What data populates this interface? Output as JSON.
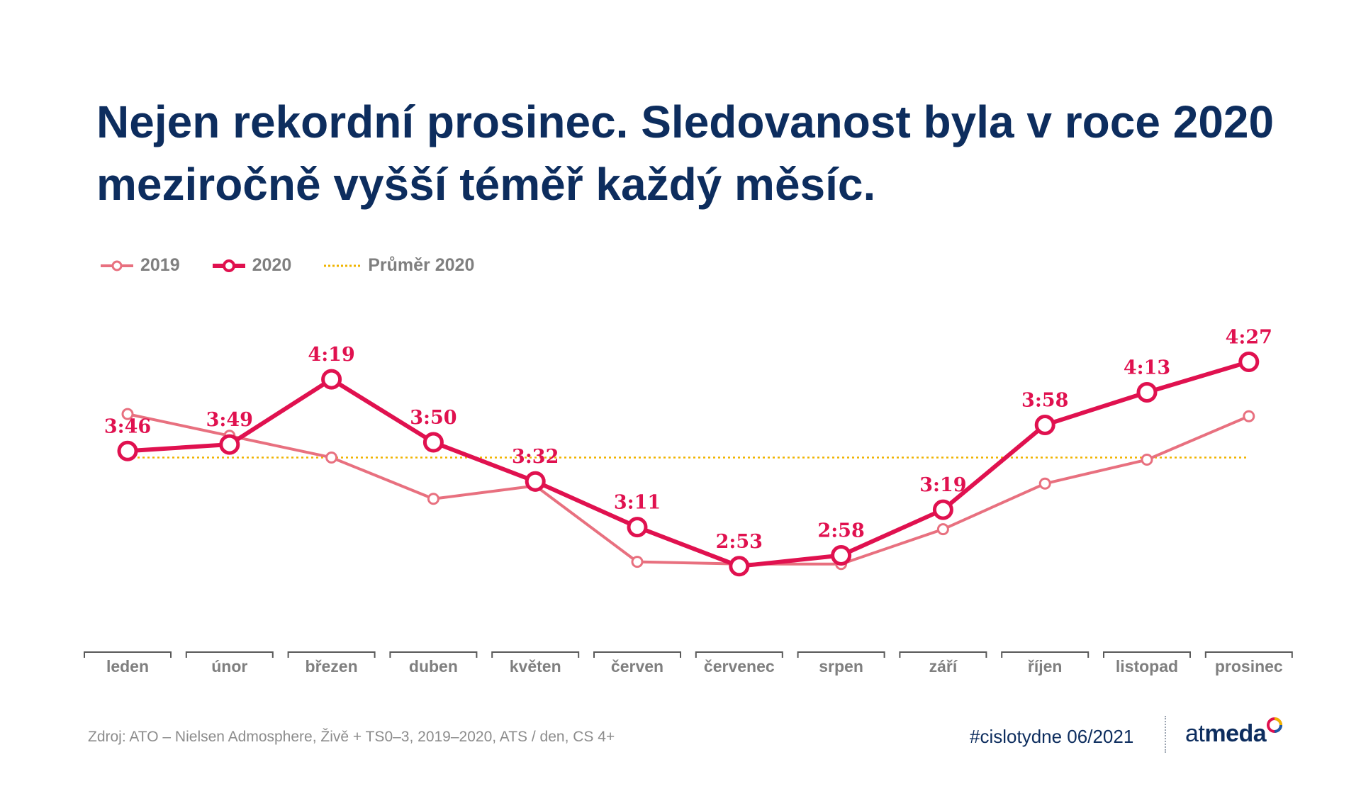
{
  "title": "Nejen rekordní prosinec. Sledovanost byla v roce 2020 meziročně vyšší téměř každý měsíc.",
  "legend": {
    "series_2019": "2019",
    "series_2020": "2020",
    "average": "Průměr 2020"
  },
  "colors": {
    "series_2019": "#e8707f",
    "series_2020": "#e0114f",
    "average": "#f0b400",
    "title": "#0d2d5e",
    "axis": "#595959"
  },
  "chart_data": {
    "type": "line",
    "categories": [
      "leden",
      "únor",
      "březen",
      "duben",
      "květen",
      "červen",
      "červenec",
      "srpen",
      "září",
      "říjen",
      "listopad",
      "prosinec"
    ],
    "y_unit": "minutes (h:mm)",
    "ylim": [
      140,
      290
    ],
    "grid": false,
    "legend_position": "top-left",
    "series": [
      {
        "name": "2019",
        "values": [
          243,
          233,
          223,
          204,
          210,
          175,
          174,
          174,
          190,
          211,
          222,
          242
        ]
      },
      {
        "name": "2020",
        "values": [
          226,
          229,
          259,
          230,
          212,
          191,
          173,
          178,
          199,
          238,
          253,
          267
        ],
        "labels": [
          "3:46",
          "3:49",
          "4:19",
          "3:50",
          "3:32",
          "3:11",
          "2:53",
          "2:58",
          "3:19",
          "3:58",
          "4:13",
          "4:27"
        ]
      }
    ],
    "reference_line": {
      "name": "Průměr 2020",
      "value": 223
    }
  },
  "footer": {
    "source": "Zdroj: ATO – Nielsen Admosphere, Živě + TS0–3, 2019–2020, ATS / den, CS 4+",
    "hashtag": "#cislotydne 06/2021",
    "logo_text_light": "at",
    "logo_text_bold": "med",
    "logo_text_end": "a"
  }
}
